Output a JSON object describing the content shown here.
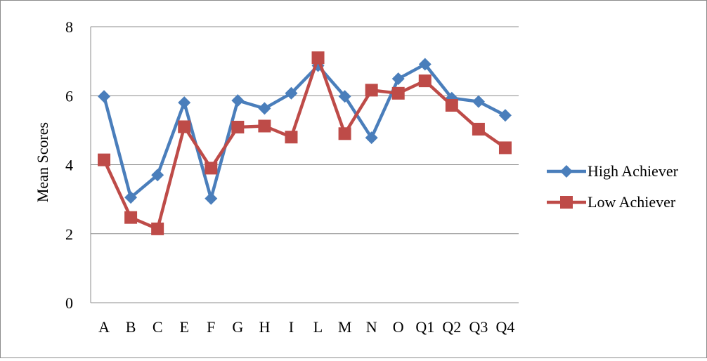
{
  "chart_data": {
    "type": "line",
    "title": "",
    "xlabel": "",
    "ylabel": "Mean Scores",
    "ylim": [
      0,
      8
    ],
    "yticks": [
      0,
      2,
      4,
      6,
      8
    ],
    "grid": "horizontal",
    "legend_position": "right",
    "categories": [
      "A",
      "B",
      "C",
      "E",
      "F",
      "G",
      "H",
      "I",
      "L",
      "M",
      "N",
      "O",
      "Q1",
      "Q2",
      "Q3",
      "Q4"
    ],
    "series": [
      {
        "name": "High Achiever",
        "color": "#4a7ebb",
        "marker": "diamond",
        "values": [
          5.98,
          3.05,
          3.7,
          5.8,
          3.02,
          5.86,
          5.63,
          6.07,
          6.87,
          5.98,
          4.78,
          6.49,
          6.91,
          5.93,
          5.83,
          5.43
        ]
      },
      {
        "name": "Low Achiever",
        "color": "#be4b48",
        "marker": "square",
        "values": [
          4.14,
          2.47,
          2.14,
          5.1,
          3.9,
          5.09,
          5.12,
          4.8,
          7.1,
          4.9,
          6.16,
          6.07,
          6.43,
          5.72,
          5.03,
          4.49
        ]
      }
    ]
  }
}
